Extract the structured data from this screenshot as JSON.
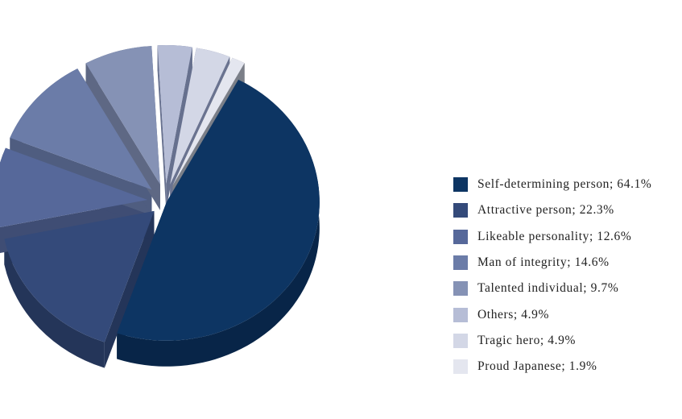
{
  "chart_data": {
    "type": "pie",
    "title": "",
    "legend_position": "right",
    "slices": [
      {
        "label": "Self-determining person; 64.1%",
        "value": 64.1,
        "color": "#0d3563",
        "side_color": "#082548"
      },
      {
        "label": "Attractive person; 22.3%",
        "value": 22.3,
        "color": "#344a7a",
        "side_color": "#243559"
      },
      {
        "label": "Likeable personality; 12.6%",
        "value": 12.6,
        "color": "#56689a",
        "side_color": "#3f4d74"
      },
      {
        "label": "Man of integrity; 14.6%",
        "value": 14.6,
        "color": "#6b7ca8",
        "side_color": "#4f5d80"
      },
      {
        "label": "Talented individual; 9.7%",
        "value": 9.7,
        "color": "#8592b5",
        "side_color": "#5e6884"
      },
      {
        "label": "Others; 4.9%",
        "value": 4.9,
        "color": "#b6bdd6",
        "side_color": "#66708e"
      },
      {
        "label": "Tragic hero; 4.9%",
        "value": 4.9,
        "color": "#d3d7e6",
        "side_color": "#6a7390"
      },
      {
        "label": "Proud Japanese; 1.9%",
        "value": 1.9,
        "color": "#e4e6ef",
        "side_color": "#7b7f88"
      }
    ]
  }
}
